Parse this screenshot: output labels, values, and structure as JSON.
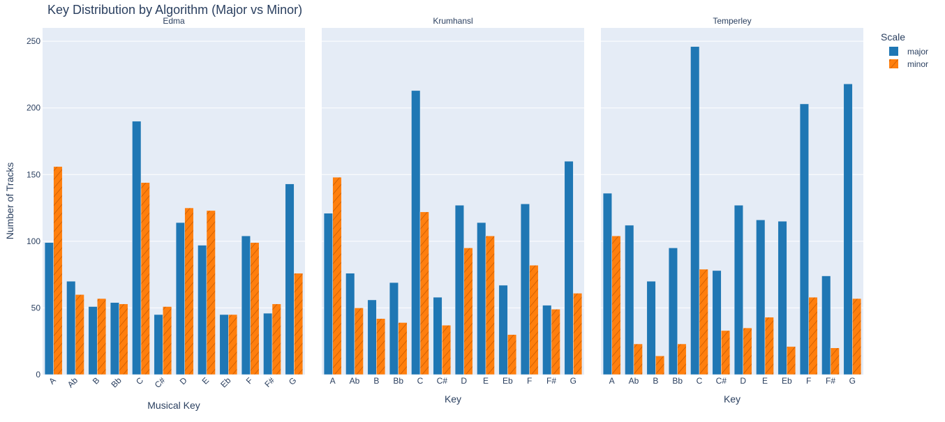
{
  "chart_data": {
    "type": "bar",
    "title": "Key Distribution by Algorithm (Major vs Minor)",
    "ylabel": "Number of Tracks",
    "ylim": [
      0,
      260
    ],
    "yticks": [
      0,
      50,
      100,
      150,
      200,
      250
    ],
    "grid": true,
    "legend": {
      "title": "Scale",
      "position": "top-right",
      "items": [
        {
          "name": "major",
          "color": "#1f77b4",
          "pattern": "solid"
        },
        {
          "name": "minor",
          "color": "#ff7f0e",
          "pattern": "diagonal-hatch"
        }
      ]
    },
    "colors": {
      "major": "#1f77b4",
      "minor": "#ff7f0e",
      "plot_bg": "#e5ecf6",
      "text": "#2a3f5f"
    },
    "panels": [
      {
        "name": "Edma",
        "xlabel": "Musical Key",
        "tick_rotation": "rotated",
        "categories": [
          "A",
          "Ab",
          "B",
          "Bb",
          "C",
          "C#",
          "D",
          "E",
          "Eb",
          "F",
          "F#",
          "G"
        ],
        "series": [
          {
            "name": "major",
            "values": [
              99,
              70,
              51,
              54,
              190,
              45,
              114,
              97,
              45,
              104,
              46,
              143
            ]
          },
          {
            "name": "minor",
            "values": [
              156,
              60,
              57,
              53,
              144,
              51,
              125,
              123,
              45,
              99,
              53,
              76
            ]
          }
        ]
      },
      {
        "name": "Krumhansl",
        "xlabel": "Key",
        "tick_rotation": "none",
        "categories": [
          "A",
          "Ab",
          "B",
          "Bb",
          "C",
          "C#",
          "D",
          "E",
          "Eb",
          "F",
          "F#",
          "G"
        ],
        "series": [
          {
            "name": "major",
            "values": [
              121,
              76,
              56,
              69,
              213,
              58,
              127,
              114,
              67,
              128,
              52,
              160
            ]
          },
          {
            "name": "minor",
            "values": [
              148,
              50,
              42,
              39,
              122,
              37,
              95,
              104,
              30,
              82,
              49,
              61
            ]
          }
        ]
      },
      {
        "name": "Temperley",
        "xlabel": "Key",
        "tick_rotation": "none",
        "categories": [
          "A",
          "Ab",
          "B",
          "Bb",
          "C",
          "C#",
          "D",
          "E",
          "Eb",
          "F",
          "F#",
          "G"
        ],
        "series": [
          {
            "name": "major",
            "values": [
              136,
              112,
              70,
              95,
              246,
              78,
              127,
              116,
              115,
              203,
              74,
              218
            ]
          },
          {
            "name": "minor",
            "values": [
              104,
              23,
              14,
              23,
              79,
              33,
              35,
              43,
              21,
              58,
              20,
              57
            ]
          }
        ]
      }
    ]
  }
}
